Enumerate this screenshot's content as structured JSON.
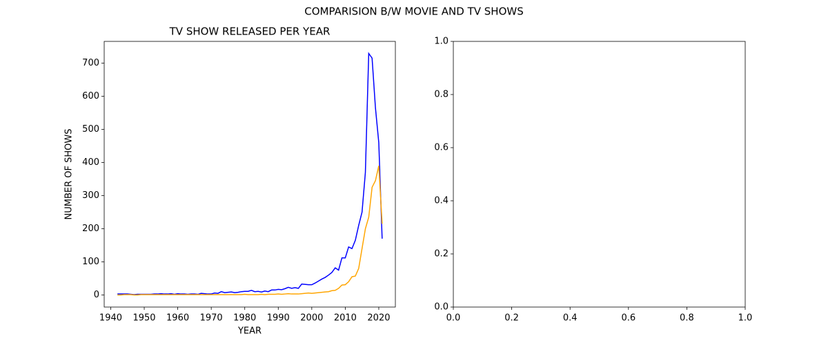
{
  "title": "COMPARISION B/W MOVIE AND TV SHOWS",
  "chart_data": [
    {
      "type": "line",
      "title": "TV SHOW RELEASED PER YEAR",
      "x_label": "YEAR",
      "y_label": "NUMBER OF SHOWS",
      "x": [
        1942,
        1943,
        1944,
        1945,
        1946,
        1947,
        1948,
        1949,
        1950,
        1951,
        1952,
        1953,
        1954,
        1955,
        1956,
        1957,
        1958,
        1959,
        1960,
        1961,
        1962,
        1963,
        1964,
        1965,
        1966,
        1967,
        1968,
        1969,
        1970,
        1971,
        1972,
        1973,
        1974,
        1975,
        1976,
        1977,
        1978,
        1979,
        1980,
        1981,
        1982,
        1983,
        1984,
        1985,
        1986,
        1987,
        1988,
        1989,
        1990,
        1991,
        1992,
        1993,
        1994,
        1995,
        1996,
        1997,
        1998,
        1999,
        2000,
        2001,
        2002,
        2003,
        2004,
        2005,
        2006,
        2007,
        2008,
        2009,
        2010,
        2011,
        2012,
        2013,
        2014,
        2015,
        2016,
        2017,
        2018,
        2019,
        2020,
        2021
      ],
      "series": [
        {
          "color": "#0000ff",
          "values": [
            3,
            3,
            3,
            3,
            2,
            1,
            2,
            2,
            2,
            2,
            2,
            3,
            3,
            4,
            3,
            3,
            4,
            2,
            4,
            3,
            3,
            2,
            3,
            3,
            2,
            5,
            4,
            3,
            3,
            6,
            5,
            10,
            7,
            8,
            9,
            7,
            8,
            10,
            11,
            11,
            14,
            10,
            11,
            9,
            12,
            10,
            15,
            15,
            17,
            16,
            19,
            23,
            20,
            22,
            20,
            33,
            32,
            31,
            31,
            36,
            42,
            48,
            53,
            60,
            68,
            82,
            75,
            112,
            112,
            145,
            140,
            165,
            210,
            250,
            370,
            729,
            715,
            565,
            460,
            170
          ]
        },
        {
          "color": "#ffa500",
          "values": [
            0,
            0,
            1,
            1,
            1,
            0,
            0,
            1,
            1,
            1,
            1,
            1,
            1,
            1,
            1,
            1,
            1,
            1,
            1,
            1,
            1,
            1,
            1,
            1,
            1,
            1,
            1,
            1,
            1,
            1,
            1,
            1,
            1,
            1,
            1,
            1,
            1,
            1,
            2,
            1,
            1,
            1,
            1,
            2,
            1,
            2,
            2,
            2,
            3,
            2,
            3,
            4,
            3,
            3,
            3,
            4,
            5,
            6,
            5,
            6,
            7,
            8,
            9,
            10,
            13,
            14,
            20,
            30,
            31,
            40,
            55,
            57,
            80,
            140,
            200,
            235,
            325,
            345,
            390,
            215
          ]
        }
      ],
      "xlim": [
        1938.05,
        2024.95
      ],
      "ylim": [
        -36.45,
        765.45
      ],
      "xticks": [
        1940,
        1950,
        1960,
        1970,
        1980,
        1990,
        2000,
        2010,
        2020
      ],
      "yticks": [
        0,
        100,
        200,
        300,
        400,
        500,
        600,
        700
      ]
    },
    {
      "type": "line",
      "series": [],
      "xlim": [
        0,
        1
      ],
      "ylim": [
        0,
        1
      ],
      "xticks": [
        {
          "value": 0,
          "label": "0.0"
        },
        {
          "value": 0.2,
          "label": "0.2"
        },
        {
          "value": 0.4,
          "label": "0.4"
        },
        {
          "value": 0.6,
          "label": "0.6"
        },
        {
          "value": 0.8,
          "label": "0.8"
        },
        {
          "value": 1,
          "label": "1.0"
        }
      ],
      "yticks": [
        {
          "value": 0,
          "label": "0.0"
        },
        {
          "value": 0.2,
          "label": "0.2"
        },
        {
          "value": 0.4,
          "label": "0.4"
        },
        {
          "value": 0.6,
          "label": "0.6"
        },
        {
          "value": 0.8,
          "label": "0.8"
        },
        {
          "value": 1,
          "label": "1.0"
        }
      ]
    }
  ]
}
